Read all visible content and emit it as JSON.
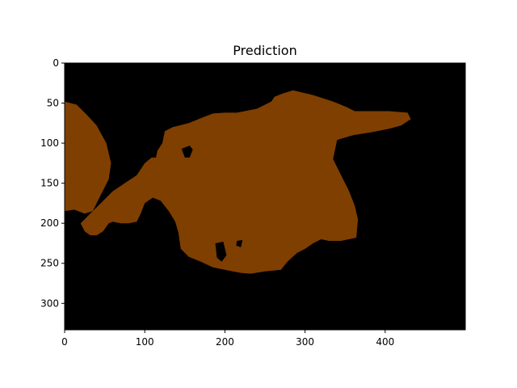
{
  "chart_data": {
    "type": "heatmap",
    "title": "Prediction",
    "xlabel": "",
    "ylabel": "",
    "xlim": [
      0,
      500
    ],
    "ylim": [
      333,
      0
    ],
    "x_ticks": [
      0,
      100,
      200,
      300,
      400
    ],
    "y_ticks": [
      0,
      50,
      100,
      150,
      200,
      250,
      300
    ],
    "x_tick_labels": [
      "0",
      "100",
      "200",
      "300",
      "400"
    ],
    "y_tick_labels": [
      "0",
      "50",
      "100",
      "150",
      "200",
      "250",
      "300"
    ],
    "background_color": "#000000",
    "mask_color": "#7f3f00",
    "regions": [
      {
        "name": "left-region",
        "points": [
          [
            0,
            48
          ],
          [
            15,
            52
          ],
          [
            28,
            65
          ],
          [
            40,
            78
          ],
          [
            52,
            100
          ],
          [
            58,
            125
          ],
          [
            55,
            145
          ],
          [
            45,
            165
          ],
          [
            35,
            185
          ],
          [
            25,
            188
          ],
          [
            12,
            183
          ],
          [
            0,
            185
          ]
        ]
      },
      {
        "name": "main-region",
        "points": [
          [
            20,
            200
          ],
          [
            35,
            185
          ],
          [
            48,
            172
          ],
          [
            60,
            160
          ],
          [
            75,
            150
          ],
          [
            90,
            140
          ],
          [
            100,
            125
          ],
          [
            112,
            115
          ],
          [
            122,
            100
          ],
          [
            125,
            85
          ],
          [
            135,
            80
          ],
          [
            155,
            75
          ],
          [
            172,
            68
          ],
          [
            185,
            63
          ],
          [
            200,
            62
          ],
          [
            215,
            62
          ],
          [
            240,
            57
          ],
          [
            258,
            48
          ],
          [
            262,
            42
          ],
          [
            272,
            38
          ],
          [
            285,
            34
          ],
          [
            310,
            40
          ],
          [
            335,
            48
          ],
          [
            352,
            55
          ],
          [
            362,
            60
          ],
          [
            380,
            60
          ],
          [
            405,
            60
          ],
          [
            428,
            62
          ],
          [
            432,
            70
          ],
          [
            420,
            78
          ],
          [
            405,
            82
          ],
          [
            385,
            86
          ],
          [
            360,
            90
          ],
          [
            340,
            96
          ],
          [
            335,
            120
          ],
          [
            345,
            140
          ],
          [
            355,
            160
          ],
          [
            362,
            178
          ],
          [
            366,
            195
          ],
          [
            364,
            218
          ],
          [
            345,
            222
          ],
          [
            330,
            222
          ],
          [
            320,
            220
          ],
          [
            310,
            225
          ],
          [
            300,
            232
          ],
          [
            290,
            237
          ],
          [
            278,
            248
          ],
          [
            270,
            258
          ],
          [
            250,
            260
          ],
          [
            232,
            263
          ],
          [
            220,
            262
          ],
          [
            210,
            260
          ],
          [
            200,
            258
          ],
          [
            185,
            255
          ],
          [
            170,
            248
          ],
          [
            155,
            242
          ],
          [
            145,
            232
          ],
          [
            142,
            212
          ],
          [
            138,
            198
          ],
          [
            130,
            185
          ],
          [
            120,
            172
          ],
          [
            110,
            168
          ],
          [
            100,
            175
          ],
          [
            95,
            188
          ],
          [
            90,
            198
          ],
          [
            80,
            200
          ],
          [
            70,
            200
          ],
          [
            60,
            198
          ],
          [
            55,
            200
          ],
          [
            48,
            210
          ],
          [
            40,
            215
          ],
          [
            32,
            215
          ],
          [
            25,
            210
          ]
        ]
      }
    ],
    "holes": [
      {
        "name": "hole-a",
        "points": [
          [
            188,
            225
          ],
          [
            198,
            223
          ],
          [
            202,
            240
          ],
          [
            196,
            248
          ],
          [
            190,
            243
          ]
        ]
      },
      {
        "name": "hole-b",
        "points": [
          [
            215,
            222
          ],
          [
            222,
            221
          ],
          [
            220,
            230
          ],
          [
            214,
            228
          ]
        ]
      },
      {
        "name": "hole-c",
        "points": [
          [
            98,
            113
          ],
          [
            108,
            107
          ],
          [
            116,
            108
          ],
          [
            114,
            118
          ],
          [
            105,
            118
          ],
          [
            100,
            117
          ]
        ]
      },
      {
        "name": "hole-d",
        "points": [
          [
            146,
            107
          ],
          [
            156,
            103
          ],
          [
            160,
            108
          ],
          [
            156,
            118
          ],
          [
            150,
            118
          ]
        ]
      }
    ]
  }
}
